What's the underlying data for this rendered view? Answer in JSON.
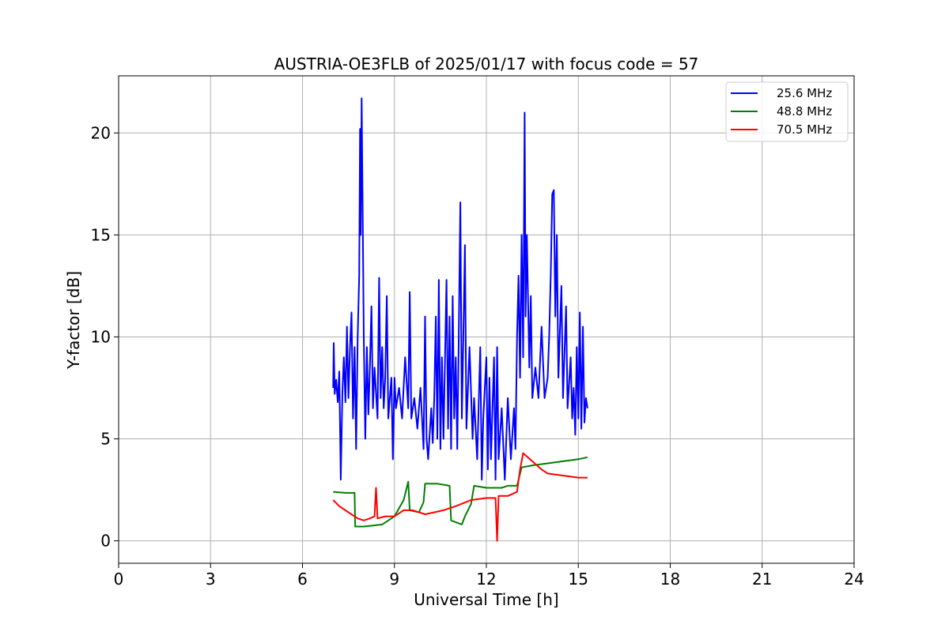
{
  "chart_data": {
    "type": "line",
    "title": "AUSTRIA-OE3FLB of 2025/01/17 with focus code = 57",
    "xlabel": "Universal Time [h]",
    "ylabel": "Y-factor [dB]",
    "xlim": [
      0,
      24
    ],
    "ylim": [
      -1.1,
      22.8
    ],
    "xticks": [
      0,
      3,
      6,
      9,
      12,
      15,
      18,
      21,
      24
    ],
    "yticks": [
      0,
      5,
      10,
      15,
      20
    ],
    "grid": true,
    "legend_position": "top-right",
    "series": [
      {
        "name": "25.6 MHz",
        "color": "#0000ff",
        "points": [
          [
            7.0,
            7.5
          ],
          [
            7.02,
            9.7
          ],
          [
            7.05,
            7.2
          ],
          [
            7.1,
            7.9
          ],
          [
            7.15,
            6.8
          ],
          [
            7.2,
            8.3
          ],
          [
            7.25,
            3.0
          ],
          [
            7.3,
            7.2
          ],
          [
            7.35,
            9.0
          ],
          [
            7.4,
            6.8
          ],
          [
            7.45,
            10.5
          ],
          [
            7.5,
            7.0
          ],
          [
            7.55,
            9.5
          ],
          [
            7.6,
            11.2
          ],
          [
            7.65,
            6.0
          ],
          [
            7.7,
            9.5
          ],
          [
            7.75,
            4.5
          ],
          [
            7.8,
            10.0
          ],
          [
            7.85,
            13.0
          ],
          [
            7.88,
            20.2
          ],
          [
            7.9,
            15.0
          ],
          [
            7.93,
            21.7
          ],
          [
            7.96,
            17.0
          ],
          [
            8.0,
            10.0
          ],
          [
            8.05,
            5.0
          ],
          [
            8.1,
            9.5
          ],
          [
            8.15,
            6.2
          ],
          [
            8.2,
            8.5
          ],
          [
            8.25,
            11.5
          ],
          [
            8.3,
            6.5
          ],
          [
            8.35,
            8.5
          ],
          [
            8.45,
            6.0
          ],
          [
            8.5,
            12.9
          ],
          [
            8.55,
            7.0
          ],
          [
            8.6,
            9.5
          ],
          [
            8.65,
            6.5
          ],
          [
            8.7,
            8.0
          ],
          [
            8.75,
            12.0
          ],
          [
            8.8,
            6.0
          ],
          [
            8.9,
            8.0
          ],
          [
            8.95,
            4.0
          ],
          [
            9.0,
            8.0
          ],
          [
            9.05,
            6.5
          ],
          [
            9.15,
            7.5
          ],
          [
            9.25,
            6.0
          ],
          [
            9.35,
            9.0
          ],
          [
            9.45,
            6.5
          ],
          [
            9.5,
            12.2
          ],
          [
            9.55,
            6.0
          ],
          [
            9.65,
            7.0
          ],
          [
            9.75,
            5.5
          ],
          [
            9.85,
            7.5
          ],
          [
            9.95,
            4.5
          ],
          [
            10.0,
            11.0
          ],
          [
            10.05,
            5.0
          ],
          [
            10.1,
            4.0
          ],
          [
            10.2,
            6.5
          ],
          [
            10.25,
            4.8
          ],
          [
            10.3,
            7.0
          ],
          [
            10.35,
            11.0
          ],
          [
            10.4,
            5.0
          ],
          [
            10.45,
            12.8
          ],
          [
            10.5,
            4.5
          ],
          [
            10.55,
            9.0
          ],
          [
            10.6,
            5.0
          ],
          [
            10.7,
            12.8
          ],
          [
            10.75,
            5.5
          ],
          [
            10.8,
            11.0
          ],
          [
            10.85,
            4.5
          ],
          [
            10.9,
            12.0
          ],
          [
            10.95,
            6.0
          ],
          [
            11.0,
            9.0
          ],
          [
            11.05,
            4.5
          ],
          [
            11.1,
            10.0
          ],
          [
            11.15,
            16.6
          ],
          [
            11.2,
            6.0
          ],
          [
            11.25,
            10.0
          ],
          [
            11.3,
            14.5
          ],
          [
            11.35,
            5.5
          ],
          [
            11.45,
            9.5
          ],
          [
            11.55,
            5.0
          ],
          [
            11.6,
            7.0
          ],
          [
            11.7,
            4.0
          ],
          [
            11.8,
            9.5
          ],
          [
            11.85,
            3.0
          ],
          [
            11.9,
            6.0
          ],
          [
            12.0,
            9.0
          ],
          [
            12.05,
            3.5
          ],
          [
            12.1,
            8.0
          ],
          [
            12.15,
            4.0
          ],
          [
            12.25,
            9.0
          ],
          [
            12.3,
            3.0
          ],
          [
            12.35,
            9.5
          ],
          [
            12.4,
            4.0
          ],
          [
            12.5,
            6.5
          ],
          [
            12.6,
            3.0
          ],
          [
            12.7,
            7.0
          ],
          [
            12.8,
            4.0
          ],
          [
            12.9,
            6.5
          ],
          [
            12.95,
            4.5
          ],
          [
            13.0,
            10.0
          ],
          [
            13.05,
            13.0
          ],
          [
            13.1,
            8.0
          ],
          [
            13.15,
            15.0
          ],
          [
            13.2,
            9.0
          ],
          [
            13.25,
            21.0
          ],
          [
            13.28,
            11.0
          ],
          [
            13.32,
            15.0
          ],
          [
            13.4,
            8.5
          ],
          [
            13.45,
            12.0
          ],
          [
            13.5,
            7.0
          ],
          [
            13.6,
            8.5
          ],
          [
            13.7,
            7.0
          ],
          [
            13.8,
            10.5
          ],
          [
            13.9,
            7.0
          ],
          [
            14.0,
            8.0
          ],
          [
            14.05,
            10.0
          ],
          [
            14.1,
            13.0
          ],
          [
            14.15,
            17.0
          ],
          [
            14.2,
            17.2
          ],
          [
            14.25,
            11.0
          ],
          [
            14.3,
            15.0
          ],
          [
            14.35,
            8.0
          ],
          [
            14.45,
            12.5
          ],
          [
            14.5,
            7.0
          ],
          [
            14.6,
            11.5
          ],
          [
            14.65,
            6.5
          ],
          [
            14.75,
            9.0
          ],
          [
            14.8,
            6.0
          ],
          [
            14.85,
            7.5
          ],
          [
            14.9,
            5.2
          ],
          [
            14.95,
            9.5
          ],
          [
            15.0,
            6.0
          ],
          [
            15.05,
            11.2
          ],
          [
            15.1,
            5.5
          ],
          [
            15.15,
            10.5
          ],
          [
            15.2,
            5.8
          ],
          [
            15.25,
            7.0
          ],
          [
            15.3,
            6.5
          ]
        ]
      },
      {
        "name": "48.8 MHz",
        "color": "#008000",
        "points": [
          [
            7.0,
            2.4
          ],
          [
            7.4,
            2.35
          ],
          [
            7.7,
            2.35
          ],
          [
            7.72,
            0.7
          ],
          [
            8.0,
            0.7
          ],
          [
            8.3,
            0.75
          ],
          [
            8.6,
            0.8
          ],
          [
            9.0,
            1.2
          ],
          [
            9.3,
            2.0
          ],
          [
            9.45,
            2.9
          ],
          [
            9.5,
            1.5
          ],
          [
            9.8,
            1.4
          ],
          [
            9.95,
            1.9
          ],
          [
            10.0,
            2.8
          ],
          [
            10.4,
            2.8
          ],
          [
            10.8,
            2.7
          ],
          [
            10.85,
            1.0
          ],
          [
            11.2,
            0.8
          ],
          [
            11.3,
            1.2
          ],
          [
            11.5,
            1.8
          ],
          [
            11.6,
            2.7
          ],
          [
            12.0,
            2.6
          ],
          [
            12.5,
            2.6
          ],
          [
            12.7,
            2.7
          ],
          [
            13.0,
            2.7
          ],
          [
            13.15,
            3.6
          ],
          [
            13.5,
            3.7
          ],
          [
            14.0,
            3.8
          ],
          [
            14.5,
            3.9
          ],
          [
            15.0,
            4.0
          ],
          [
            15.3,
            4.1
          ]
        ]
      },
      {
        "name": "70.5 MHz",
        "color": "#ff0000",
        "points": [
          [
            7.0,
            2.0
          ],
          [
            7.2,
            1.7
          ],
          [
            7.5,
            1.4
          ],
          [
            7.8,
            1.1
          ],
          [
            8.0,
            1.0
          ],
          [
            8.2,
            1.1
          ],
          [
            8.35,
            1.2
          ],
          [
            8.4,
            2.6
          ],
          [
            8.45,
            1.1
          ],
          [
            8.7,
            1.2
          ],
          [
            9.0,
            1.2
          ],
          [
            9.3,
            1.5
          ],
          [
            9.6,
            1.5
          ],
          [
            10.0,
            1.3
          ],
          [
            10.3,
            1.4
          ],
          [
            10.6,
            1.5
          ],
          [
            11.0,
            1.7
          ],
          [
            11.5,
            2.0
          ],
          [
            12.0,
            2.1
          ],
          [
            12.3,
            2.1
          ],
          [
            12.35,
            0.0
          ],
          [
            12.4,
            2.2
          ],
          [
            12.7,
            2.2
          ],
          [
            13.0,
            2.4
          ],
          [
            13.1,
            3.5
          ],
          [
            13.2,
            4.3
          ],
          [
            13.5,
            3.9
          ],
          [
            13.8,
            3.5
          ],
          [
            14.0,
            3.3
          ],
          [
            14.5,
            3.2
          ],
          [
            15.0,
            3.1
          ],
          [
            15.3,
            3.1
          ]
        ]
      }
    ]
  }
}
